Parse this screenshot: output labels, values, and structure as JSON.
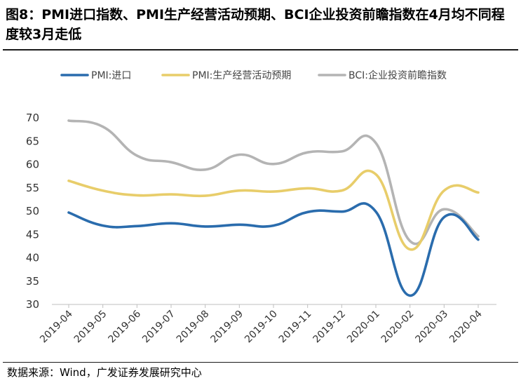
{
  "title": "图8：PMI进口指数、PMI生产经营活动预期、BCI企业投资前瞻指数在4月均不同程度较3月走低",
  "source": "数据来源：Wind，广发证券发展研究中心",
  "chart_data": {
    "type": "line",
    "categories": [
      "2019-04",
      "2019-05",
      "2019-06",
      "2019-07",
      "2019-08",
      "2019-09",
      "2019-10",
      "2019-11",
      "2019-12",
      "2020-01",
      "2020-02",
      "2020-03",
      "2020-04"
    ],
    "ylim": [
      30,
      70
    ],
    "yticks": [
      30,
      35,
      40,
      45,
      50,
      55,
      60,
      65,
      70
    ],
    "grid": false,
    "legend": "top",
    "series": [
      {
        "name": "PMI:进口",
        "color": "#2a6cad",
        "values": [
          49.7,
          46.9,
          46.8,
          47.4,
          46.7,
          47.1,
          46.9,
          49.8,
          49.9,
          49.9,
          31.9,
          48.7,
          43.9
        ]
      },
      {
        "name": "PMI:生产经营活动预期",
        "color": "#e8cd6a",
        "values": [
          56.5,
          54.4,
          53.4,
          53.6,
          53.3,
          54.4,
          54.2,
          54.9,
          54.4,
          57.9,
          41.8,
          54.4,
          54.0
        ]
      },
      {
        "name": "BCI:企业投资前瞻指数",
        "color": "#b4b4b4",
        "values": [
          69.4,
          68.1,
          61.9,
          60.5,
          58.9,
          62.1,
          60.1,
          62.6,
          62.8,
          64.6,
          43.6,
          50.4,
          44.6
        ]
      }
    ]
  }
}
